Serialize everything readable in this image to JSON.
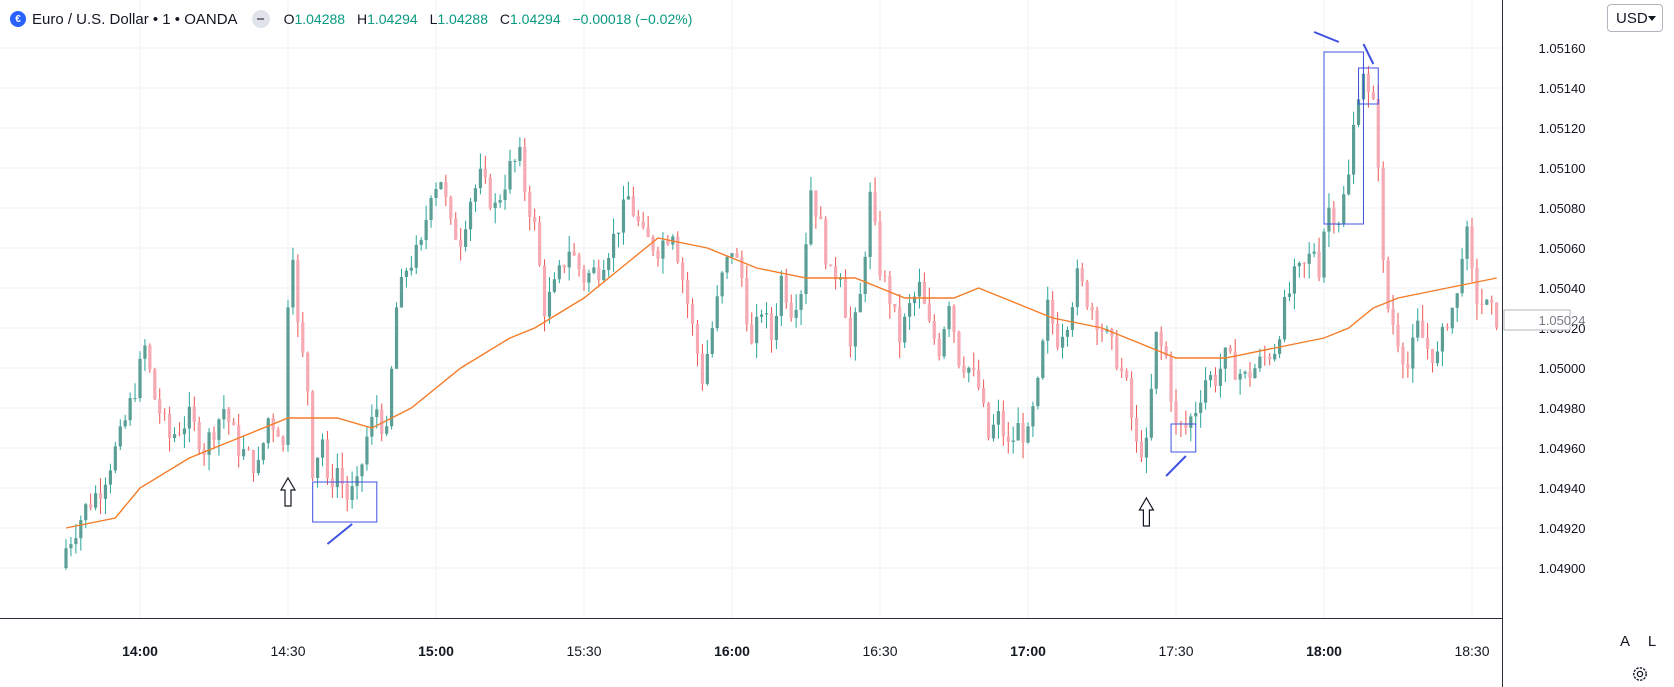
{
  "legend": {
    "symbol_icon": "euro-dollar-flag-icon",
    "title": "Euro / U.S. Dollar • 1 • OANDA",
    "ohlc": {
      "o_label": "O",
      "o": "1.04288",
      "h_label": "H",
      "h": "1.04294",
      "l_label": "L",
      "l": "1.04288",
      "c_label": "C",
      "c": "1.04294",
      "change": "−0.00018 (−0.02%)"
    }
  },
  "price_scale": {
    "currency": "USD",
    "labels": [
      "1.05160",
      "1.05140",
      "1.05120",
      "1.05100",
      "1.05080",
      "1.05060",
      "1.05040",
      "1.05020",
      "1.05000",
      "1.04980",
      "1.04960",
      "1.04940",
      "1.04920",
      "1.04900"
    ],
    "last_price": "1.05024",
    "auto_button": "A",
    "log_button": "L"
  },
  "time_scale": {
    "labels": [
      {
        "t": "14:00",
        "bold": true
      },
      {
        "t": "14:30",
        "bold": false
      },
      {
        "t": "15:00",
        "bold": true
      },
      {
        "t": "15:30",
        "bold": false
      },
      {
        "t": "16:00",
        "bold": true
      },
      {
        "t": "16:30",
        "bold": false
      },
      {
        "t": "17:00",
        "bold": true
      },
      {
        "t": "17:30",
        "bold": false
      },
      {
        "t": "18:00",
        "bold": true
      },
      {
        "t": "18:30",
        "bold": false
      }
    ]
  },
  "colors": {
    "up": "#26a69a",
    "up_body": "#5b9e95",
    "down": "#f7a9b4",
    "down_wick": "#ef5350",
    "ma": "#f57c28",
    "annotation": "#3f51e0",
    "grid": "#eef1f5",
    "scale_border": "#2a2e39"
  },
  "chart_data": {
    "type": "candlestick",
    "instrument": "Euro / U.S. Dollar",
    "timeframe": "1",
    "source": "OANDA",
    "y_range": [
      1.0489,
      1.05175
    ],
    "x_range": [
      "13:45",
      "18:45"
    ],
    "anchors_close": [
      [
        "13:45",
        1.0491
      ],
      [
        "13:49",
        1.0493
      ],
      [
        "13:52",
        1.0494
      ],
      [
        "13:56",
        1.04965
      ],
      [
        "13:59",
        1.0499
      ],
      [
        "14:01",
        1.0501
      ],
      [
        "14:03",
        1.04985
      ],
      [
        "14:06",
        1.04965
      ],
      [
        "14:10",
        1.04975
      ],
      [
        "14:13",
        1.0496
      ],
      [
        "14:17",
        1.0498
      ],
      [
        "14:20",
        1.0496
      ],
      [
        "14:24",
        1.0495
      ],
      [
        "14:26",
        1.04975
      ],
      [
        "14:28",
        1.0497
      ],
      [
        "14:29",
        1.0496
      ],
      [
        "14:30",
        1.05035
      ],
      [
        "14:31",
        1.0506
      ],
      [
        "14:32",
        1.0502
      ],
      [
        "14:34",
        1.0499
      ],
      [
        "14:35",
        1.0495
      ],
      [
        "14:37",
        1.04965
      ],
      [
        "14:38",
        1.0494
      ],
      [
        "14:40",
        1.0495
      ],
      [
        "14:42",
        1.04935
      ],
      [
        "14:44",
        1.0494
      ],
      [
        "14:46",
        1.04965
      ],
      [
        "14:48",
        1.0498
      ],
      [
        "14:50",
        1.04965
      ],
      [
        "14:52",
        1.0503
      ],
      [
        "14:54",
        1.0505
      ],
      [
        "14:57",
        1.0506
      ],
      [
        "14:59",
        1.0509
      ],
      [
        "15:01",
        1.05095
      ],
      [
        "15:03",
        1.0507
      ],
      [
        "15:05",
        1.05065
      ],
      [
        "15:07",
        1.05085
      ],
      [
        "15:09",
        1.05095
      ],
      [
        "15:12",
        1.0508
      ],
      [
        "15:15",
        1.051
      ],
      [
        "15:17",
        1.05105
      ],
      [
        "15:18",
        1.0509
      ],
      [
        "15:20",
        1.0507
      ],
      [
        "15:22",
        1.0503
      ],
      [
        "15:24",
        1.0504
      ],
      [
        "15:27",
        1.0506
      ],
      [
        "15:30",
        1.05045
      ],
      [
        "15:33",
        1.0505
      ],
      [
        "15:36",
        1.05065
      ],
      [
        "15:39",
        1.05085
      ],
      [
        "15:42",
        1.05065
      ],
      [
        "15:45",
        1.0506
      ],
      [
        "15:48",
        1.0507
      ],
      [
        "15:50",
        1.05045
      ],
      [
        "15:52",
        1.0502
      ],
      [
        "15:54",
        1.04995
      ],
      [
        "15:56",
        1.0502
      ],
      [
        "15:58",
        1.05045
      ],
      [
        "16:00",
        1.0506
      ],
      [
        "16:02",
        1.05045
      ],
      [
        "16:04",
        1.0501
      ],
      [
        "16:06",
        1.0503
      ],
      [
        "16:08",
        1.05015
      ],
      [
        "16:10",
        1.05045
      ],
      [
        "16:12",
        1.0503
      ],
      [
        "16:14",
        1.0504
      ],
      [
        "16:16",
        1.0509
      ],
      [
        "16:18",
        1.0507
      ],
      [
        "16:20",
        1.05045
      ],
      [
        "16:22",
        1.0505
      ],
      [
        "16:24",
        1.0501
      ],
      [
        "16:26",
        1.05035
      ],
      [
        "16:28",
        1.05085
      ],
      [
        "16:30",
        1.0505
      ],
      [
        "16:32",
        1.05035
      ],
      [
        "16:34",
        1.05015
      ],
      [
        "16:36",
        1.0503
      ],
      [
        "16:38",
        1.0504
      ],
      [
        "16:40",
        1.0502
      ],
      [
        "16:42",
        1.0501
      ],
      [
        "16:44",
        1.05035
      ],
      [
        "16:46",
        1.05005
      ],
      [
        "16:48",
        1.05
      ],
      [
        "16:50",
        1.0499
      ],
      [
        "16:52",
        1.04965
      ],
      [
        "16:54",
        1.04975
      ],
      [
        "16:56",
        1.0496
      ],
      [
        "16:58",
        1.0497
      ],
      [
        "17:00",
        1.04965
      ],
      [
        "17:02",
        1.0499
      ],
      [
        "17:04",
        1.0503
      ],
      [
        "17:06",
        1.05015
      ],
      [
        "17:08",
        1.05025
      ],
      [
        "17:10",
        1.05045
      ],
      [
        "17:12",
        1.05035
      ],
      [
        "17:14",
        1.05025
      ],
      [
        "17:16",
        1.05015
      ],
      [
        "17:18",
        1.05005
      ],
      [
        "17:20",
        1.0499
      ],
      [
        "17:22",
        1.0496
      ],
      [
        "17:24",
        1.0496
      ],
      [
        "17:26",
        1.05015
      ],
      [
        "17:28",
        1.05005
      ],
      [
        "17:30",
        1.0497
      ],
      [
        "17:32",
        1.0497
      ],
      [
        "17:34",
        1.0498
      ],
      [
        "17:36",
        1.04995
      ],
      [
        "17:38",
        1.04995
      ],
      [
        "17:40",
        1.05005
      ],
      [
        "17:44",
        1.04995
      ],
      [
        "17:48",
        1.05005
      ],
      [
        "17:50",
        1.0501
      ],
      [
        "17:52",
        1.0503
      ],
      [
        "17:54",
        1.05045
      ],
      [
        "17:56",
        1.0505
      ],
      [
        "17:58",
        1.0506
      ],
      [
        "17:59",
        1.0505
      ],
      [
        "18:00",
        1.0507
      ],
      [
        "18:01",
        1.0508
      ],
      [
        "18:03",
        1.05075
      ],
      [
        "18:05",
        1.05095
      ],
      [
        "18:06",
        1.0512
      ],
      [
        "18:07",
        1.0514
      ],
      [
        "18:08",
        1.0515
      ],
      [
        "18:09",
        1.05135
      ],
      [
        "18:10",
        1.0513
      ],
      [
        "18:11",
        1.05105
      ],
      [
        "18:12",
        1.0505
      ],
      [
        "18:13",
        1.0503
      ],
      [
        "18:15",
        1.05015
      ],
      [
        "18:17",
        1.05
      ],
      [
        "18:19",
        1.0502
      ],
      [
        "18:21",
        1.0501
      ],
      [
        "18:23",
        1.05005
      ],
      [
        "18:25",
        1.05025
      ],
      [
        "18:27",
        1.05035
      ],
      [
        "18:28",
        1.0506
      ],
      [
        "18:29",
        1.05065
      ],
      [
        "18:30",
        1.05045
      ],
      [
        "18:31",
        1.05035
      ],
      [
        "18:33",
        1.0503
      ],
      [
        "18:35",
        1.05025
      ]
    ],
    "moving_average": [
      [
        "13:45",
        1.0492
      ],
      [
        "13:55",
        1.04925
      ],
      [
        "14:00",
        1.0494
      ],
      [
        "14:10",
        1.04955
      ],
      [
        "14:20",
        1.04965
      ],
      [
        "14:30",
        1.04975
      ],
      [
        "14:40",
        1.04975
      ],
      [
        "14:47",
        1.0497
      ],
      [
        "14:55",
        1.0498
      ],
      [
        "15:05",
        1.05
      ],
      [
        "15:15",
        1.05015
      ],
      [
        "15:20",
        1.0502
      ],
      [
        "15:30",
        1.05035
      ],
      [
        "15:40",
        1.05055
      ],
      [
        "15:45",
        1.05065
      ],
      [
        "15:55",
        1.0506
      ],
      [
        "16:05",
        1.0505
      ],
      [
        "16:15",
        1.05045
      ],
      [
        "16:25",
        1.05045
      ],
      [
        "16:35",
        1.05035
      ],
      [
        "16:45",
        1.05035
      ],
      [
        "16:50",
        1.0504
      ],
      [
        "16:55",
        1.05035
      ],
      [
        "17:00",
        1.0503
      ],
      [
        "17:05",
        1.05025
      ],
      [
        "17:15",
        1.0502
      ],
      [
        "17:25",
        1.0501
      ],
      [
        "17:30",
        1.05005
      ],
      [
        "17:35",
        1.05005
      ],
      [
        "17:40",
        1.05005
      ],
      [
        "17:50",
        1.0501
      ],
      [
        "18:00",
        1.05015
      ],
      [
        "18:05",
        1.0502
      ],
      [
        "18:10",
        1.0503
      ],
      [
        "18:15",
        1.05035
      ],
      [
        "18:25",
        1.0504
      ],
      [
        "18:35",
        1.05045
      ]
    ],
    "annotations": {
      "boxes": [
        {
          "t0": "14:35",
          "t1": "14:48",
          "p_hi": 1.04943,
          "p_lo": 1.04923
        },
        {
          "t0": "17:29",
          "t1": "17:34",
          "p_hi": 1.04972,
          "p_lo": 1.04958
        },
        {
          "t0": "18:00",
          "t1": "18:08",
          "p_hi": 1.05158,
          "p_lo": 1.05072
        },
        {
          "t0": "18:07",
          "t1": "18:11",
          "p_hi": 1.0515,
          "p_lo": 1.05132
        }
      ],
      "up_arrows": [
        {
          "t": "14:30",
          "p": 1.04945
        },
        {
          "t": "17:24",
          "p": 1.04935
        }
      ],
      "strokes": [
        {
          "t0": "14:38",
          "p0": 1.04912,
          "t1": "14:43",
          "p1": 1.04922
        },
        {
          "t0": "17:28",
          "p0": 1.04946,
          "t1": "17:32",
          "p1": 1.04956
        },
        {
          "t0": "17:58",
          "p0": 1.05168,
          "t1": "18:03",
          "p1": 1.05163
        },
        {
          "t0": "18:08",
          "p0": 1.05162,
          "t1": "18:10",
          "p1": 1.05152
        }
      ]
    }
  }
}
